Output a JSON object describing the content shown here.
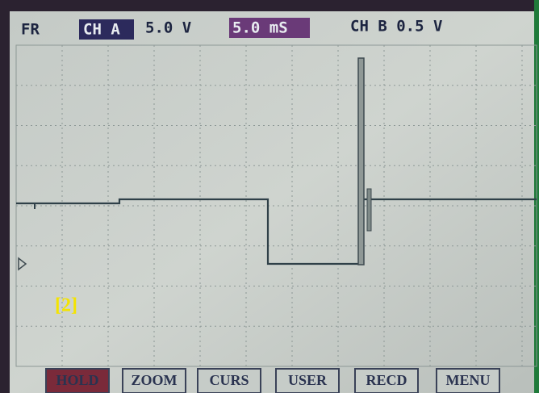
{
  "header": {
    "mode": "FR",
    "channel_a": "CH A",
    "channel_a_scale": "5.0 V",
    "timebase": "5.0 mS",
    "channel_b": "CH B 0.5 V"
  },
  "label": "[2]",
  "buttons": [
    "HOLD",
    "ZOOM",
    "CURS",
    "USER",
    "RECD",
    "MENU"
  ]
}
